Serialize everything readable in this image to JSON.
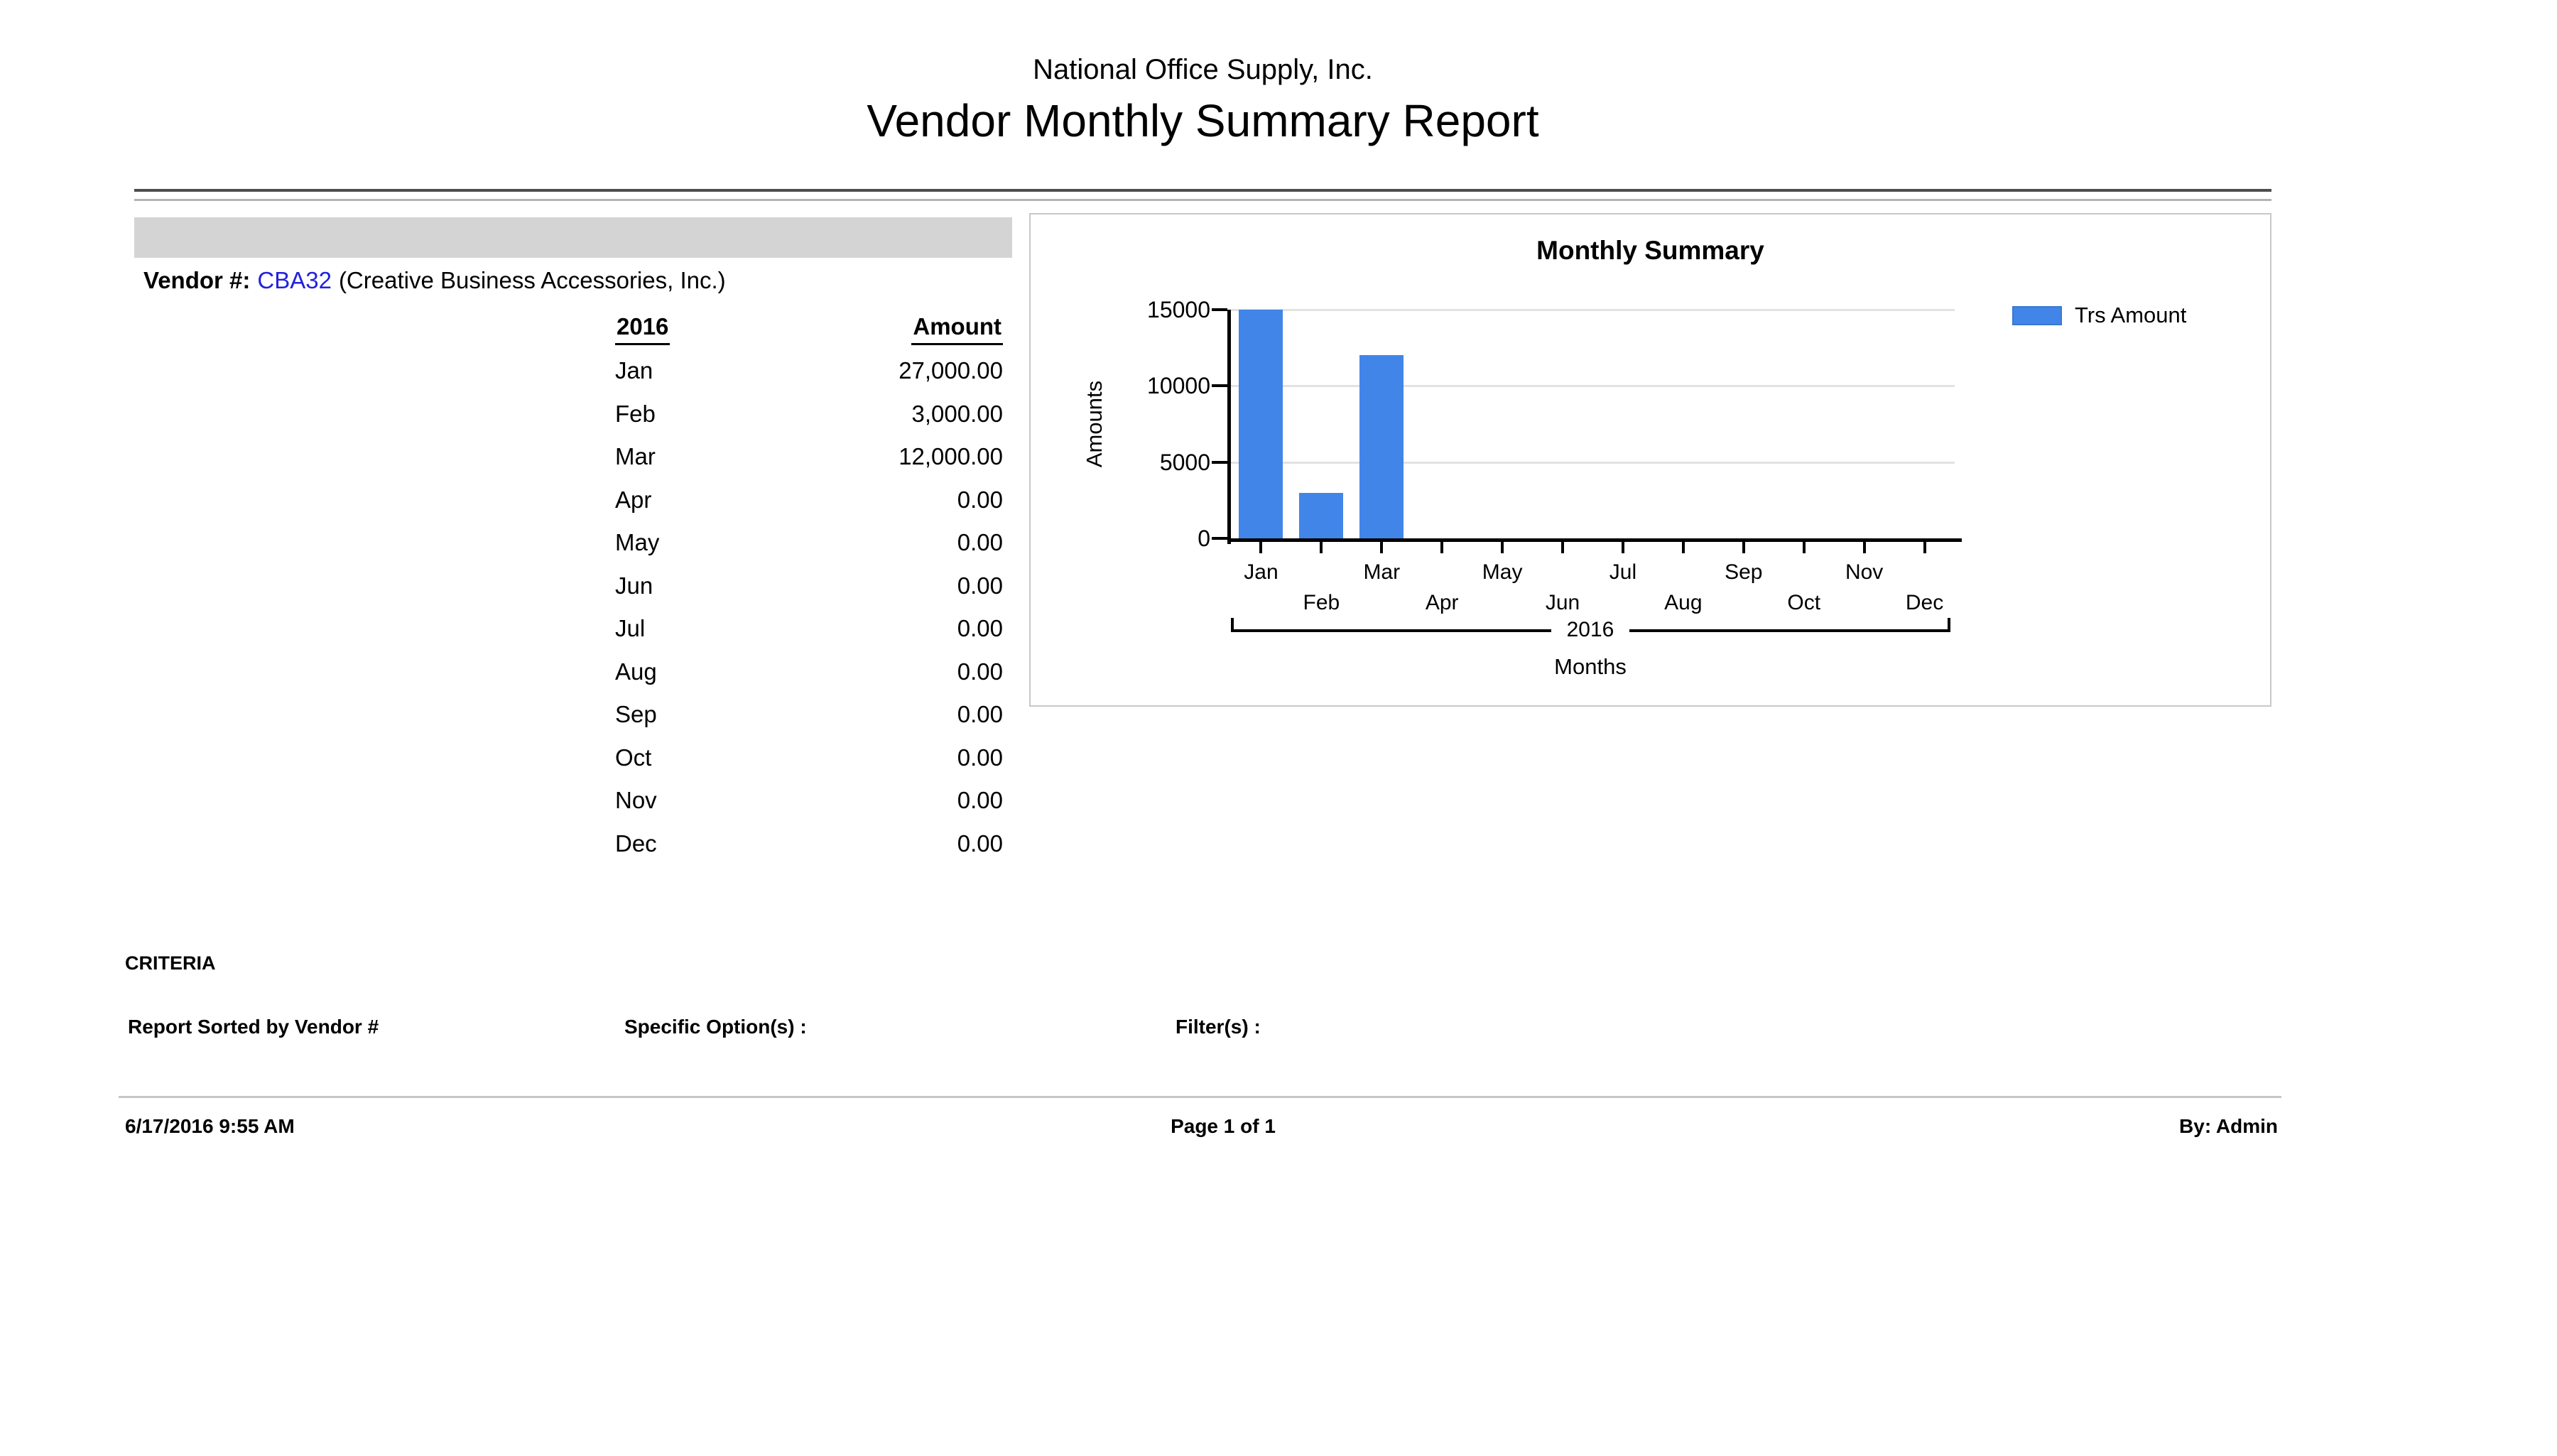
{
  "report": {
    "company": "National Office Supply, Inc.",
    "title": "Vendor Monthly Summary Report"
  },
  "vendor": {
    "label": "Vendor #:",
    "code": "CBA32",
    "name": "(Creative Business Accessories, Inc.)"
  },
  "table": {
    "year_header": "2016",
    "amount_header": "Amount",
    "rows": [
      {
        "month": "Jan",
        "amount": "27,000.00"
      },
      {
        "month": "Feb",
        "amount": "3,000.00"
      },
      {
        "month": "Mar",
        "amount": "12,000.00"
      },
      {
        "month": "Apr",
        "amount": "0.00"
      },
      {
        "month": "May",
        "amount": "0.00"
      },
      {
        "month": "Jun",
        "amount": "0.00"
      },
      {
        "month": "Jul",
        "amount": "0.00"
      },
      {
        "month": "Aug",
        "amount": "0.00"
      },
      {
        "month": "Sep",
        "amount": "0.00"
      },
      {
        "month": "Oct",
        "amount": "0.00"
      },
      {
        "month": "Nov",
        "amount": "0.00"
      },
      {
        "month": "Dec",
        "amount": "0.00"
      }
    ]
  },
  "chart_data": {
    "type": "bar",
    "title": "Monthly Summary",
    "categories": [
      "Jan",
      "Feb",
      "Mar",
      "Apr",
      "May",
      "Jun",
      "Jul",
      "Aug",
      "Sep",
      "Oct",
      "Nov",
      "Dec"
    ],
    "values": [
      27000,
      3000,
      12000,
      0,
      0,
      0,
      0,
      0,
      0,
      0,
      0,
      0
    ],
    "legend": {
      "label": "Trs Amount",
      "position": "right"
    },
    "xlabel": "Months",
    "ylabel": "Amounts",
    "x_group_label": "2016",
    "ylim": [
      0,
      15000
    ],
    "yticks": [
      0,
      5000,
      10000,
      15000
    ],
    "grid": true,
    "bars_clipped_at_ymax": true
  },
  "criteria": {
    "heading": "CRITERIA",
    "sorted_by": "Report Sorted by Vendor #",
    "specific_options": "Specific Option(s) :",
    "filters": "Filter(s) :"
  },
  "footer": {
    "datetime": "6/17/2016 9:55 AM",
    "page": "Page 1 of 1",
    "by": "By: Admin"
  },
  "colors": {
    "bar": "#4285e8",
    "link": "#2222dd",
    "gridline": "#e2e2e2",
    "header_band": "#d4d4d4"
  }
}
